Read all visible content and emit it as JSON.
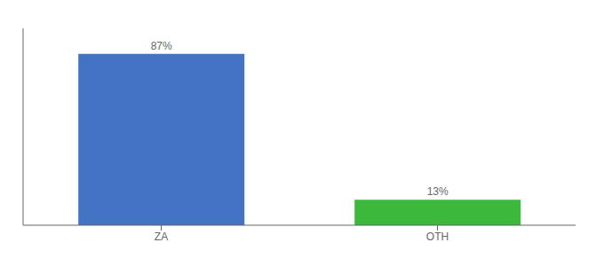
{
  "chart_data": {
    "type": "bar",
    "categories": [
      "ZA",
      "OTH"
    ],
    "values": [
      87,
      13
    ],
    "value_labels": [
      "87%",
      "13%"
    ],
    "colors": [
      "#4472c4",
      "#3cb83c"
    ],
    "ylim": [
      0,
      100
    ],
    "data_labels": true,
    "tick_labels": "x",
    "grid": false
  }
}
